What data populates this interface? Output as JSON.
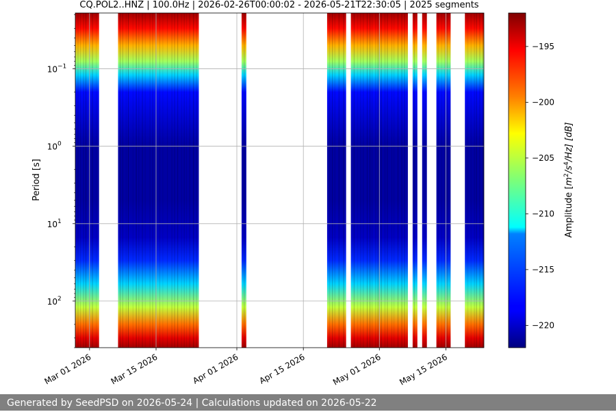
{
  "chart_data": {
    "type": "heatmap",
    "title": "CQ.POL2..HNZ | 100.0Hz | 2026-02-26T00:00:02 - 2026-05-21T22:30:05 | 2025 segments",
    "xlabel": "",
    "ylabel": "Period [s]",
    "y_scale": "log",
    "y_inverted": true,
    "ylim": [
      0.019,
      400
    ],
    "xlim": [
      "2026-02-26",
      "2026-05-23"
    ],
    "x_ticks": [
      "Mar 01 2026",
      "Mar 15 2026",
      "Apr 01 2026",
      "Apr 15 2026",
      "May 01 2026",
      "May 15 2026"
    ],
    "y_ticks": [
      {
        "period": 0.1,
        "base": "10",
        "exp": "−1"
      },
      {
        "period": 1,
        "base": "10",
        "exp": "0"
      },
      {
        "period": 10,
        "base": "10",
        "exp": "1"
      },
      {
        "period": 100,
        "base": "10",
        "exp": "2"
      }
    ],
    "grid": true,
    "data_periods": [
      {
        "start": "2026-02-26",
        "end": "2026-03-03"
      },
      {
        "start": "2026-03-07",
        "end": "2026-03-24"
      },
      {
        "start": "2026-04-02",
        "end": "2026-04-03"
      },
      {
        "start": "2026-04-20",
        "end": "2026-04-24"
      },
      {
        "start": "2026-04-25",
        "end": "2026-05-07"
      },
      {
        "start": "2026-05-08",
        "end": "2026-05-09"
      },
      {
        "start": "2026-05-10",
        "end": "2026-05-11"
      },
      {
        "start": "2026-05-13",
        "end": "2026-05-16"
      },
      {
        "start": "2026-05-19",
        "end": "2026-05-23"
      }
    ],
    "amplitude_profile": [
      {
        "period": 0.019,
        "db": -193
      },
      {
        "period": 0.03,
        "db": -196
      },
      {
        "period": 0.05,
        "db": -201
      },
      {
        "period": 0.08,
        "db": -206
      },
      {
        "period": 0.12,
        "db": -212
      },
      {
        "period": 0.2,
        "db": -218
      },
      {
        "period": 1,
        "db": -221
      },
      {
        "period": 5,
        "db": -221
      },
      {
        "period": 15,
        "db": -220
      },
      {
        "period": 30,
        "db": -217
      },
      {
        "period": 60,
        "db": -212
      },
      {
        "period": 120,
        "db": -205
      },
      {
        "period": 200,
        "db": -199
      },
      {
        "period": 300,
        "db": -195
      },
      {
        "period": 400,
        "db": -193
      }
    ],
    "colorbar": {
      "label_prefix": "Amplitude [",
      "label_m": "m",
      "label_m_exp": "2",
      "label_mid": "/s",
      "label_s_exp": "4",
      "label_suffix": "/Hz] [dB]",
      "range": [
        -222,
        -192
      ],
      "ticks": [
        "−195",
        "−200",
        "−205",
        "−210",
        "−215",
        "−220"
      ],
      "tick_values": [
        -195,
        -200,
        -205,
        -210,
        -215,
        -220
      ],
      "colormap": "jet"
    }
  },
  "footer": {
    "text": "Generated by SeedPSD on 2026-05-24 | Calculations updated on 2026-05-22"
  }
}
